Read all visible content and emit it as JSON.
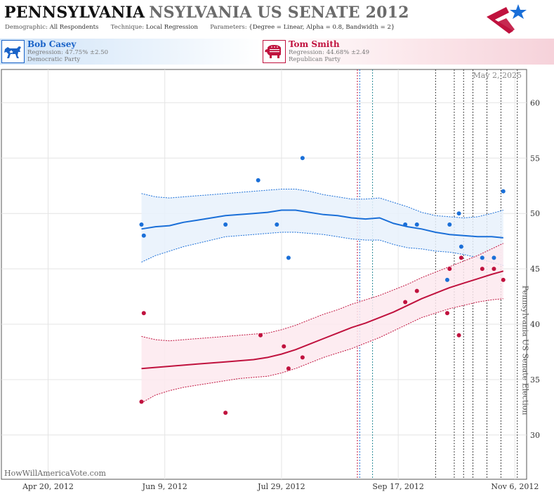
{
  "header": {
    "state": "PENNSYLVANIA",
    "race": "NSYLVANIA US SENATE 2012",
    "demographic_label": "Demographic:",
    "demographic_value": "All Respondents",
    "technique_label": "Technique:",
    "technique_value": "Local Regression",
    "parameters_label": "Parameters:",
    "parameters_value": "{Degree = Linear, Alpha = 0.8, Bandwidth = 2}"
  },
  "candidates": {
    "dem": {
      "name": "Bob Casey",
      "regression_label": "Regression:",
      "regression_value": "47.75% ±2.50",
      "party": "Democratic Party",
      "color": "#1a6fd8"
    },
    "rep": {
      "name": "Tom Smith",
      "regression_label": "Regression:",
      "regression_value": "44.68% ±2.49",
      "party": "Republican Party",
      "color": "#c0123e"
    }
  },
  "date_stamp": "May 2, 2025",
  "watermark": "HowWillAmericaVote.com",
  "icons": {
    "dem": "donkey-icon",
    "rep": "elephant-icon",
    "logo": "star-logo-icon"
  },
  "chart_data": {
    "type": "line",
    "x_start": "2012-03-31",
    "ylim": [
      26,
      63
    ],
    "xlim_days": [
      0,
      225
    ],
    "y_ticks": [
      30,
      35,
      40,
      45,
      50,
      55,
      60
    ],
    "x_ticks": [
      {
        "day": 20,
        "label": "Apr 20, 2012"
      },
      {
        "day": 70,
        "label": "Jun 9, 2012"
      },
      {
        "day": 120,
        "label": "Jul 29, 2012"
      },
      {
        "day": 170,
        "label": "Sep 17, 2012"
      },
      {
        "day": 220,
        "label": "Nov 6, 2012"
      }
    ],
    "event_lines": [
      {
        "day": 152.5,
        "color": "#c0123e"
      },
      {
        "day": 153.5,
        "color": "#1a6fd8"
      },
      {
        "day": 159,
        "color": "#2a8a98"
      },
      {
        "day": 186,
        "color": "#444444"
      },
      {
        "day": 194,
        "color": "#444444"
      },
      {
        "day": 198,
        "color": "#444444"
      },
      {
        "day": 202,
        "color": "#444444"
      },
      {
        "day": 208,
        "color": "#444444"
      },
      {
        "day": 214,
        "color": "#444444"
      },
      {
        "day": 221,
        "color": "#444444"
      }
    ],
    "election_label": "Pennsylvania US Senate Election",
    "election_day": 221,
    "series": [
      {
        "name": "Bob Casey",
        "color": "#1a6fd8",
        "band_fill": "#e8f1fb",
        "points": [
          [
            60,
            49
          ],
          [
            61,
            48
          ],
          [
            96,
            49
          ],
          [
            110,
            53
          ],
          [
            118,
            49
          ],
          [
            123,
            46
          ],
          [
            129,
            55
          ],
          [
            173,
            49
          ],
          [
            178,
            49
          ],
          [
            191,
            44
          ],
          [
            192,
            49
          ],
          [
            196,
            50
          ],
          [
            197,
            47
          ],
          [
            206,
            46
          ],
          [
            211,
            46
          ],
          [
            215,
            52
          ]
        ],
        "trend": [
          [
            60,
            48.6
          ],
          [
            66,
            48.8
          ],
          [
            72,
            48.9
          ],
          [
            78,
            49.2
          ],
          [
            84,
            49.4
          ],
          [
            90,
            49.6
          ],
          [
            96,
            49.8
          ],
          [
            102,
            49.9
          ],
          [
            108,
            50.0
          ],
          [
            114,
            50.1
          ],
          [
            120,
            50.3
          ],
          [
            126,
            50.3
          ],
          [
            132,
            50.1
          ],
          [
            138,
            49.9
          ],
          [
            144,
            49.8
          ],
          [
            150,
            49.6
          ],
          [
            156,
            49.5
          ],
          [
            162,
            49.6
          ],
          [
            168,
            49.1
          ],
          [
            174,
            48.8
          ],
          [
            180,
            48.6
          ],
          [
            186,
            48.3
          ],
          [
            192,
            48.1
          ],
          [
            198,
            48.0
          ],
          [
            204,
            47.9
          ],
          [
            210,
            47.9
          ],
          [
            215,
            47.8
          ]
        ],
        "upper": [
          [
            60,
            51.8
          ],
          [
            66,
            51.5
          ],
          [
            72,
            51.4
          ],
          [
            78,
            51.5
          ],
          [
            84,
            51.6
          ],
          [
            90,
            51.7
          ],
          [
            96,
            51.8
          ],
          [
            102,
            51.9
          ],
          [
            108,
            52.0
          ],
          [
            114,
            52.1
          ],
          [
            120,
            52.2
          ],
          [
            126,
            52.2
          ],
          [
            132,
            52.0
          ],
          [
            138,
            51.7
          ],
          [
            144,
            51.5
          ],
          [
            150,
            51.3
          ],
          [
            156,
            51.3
          ],
          [
            162,
            51.4
          ],
          [
            168,
            51.0
          ],
          [
            174,
            50.6
          ],
          [
            180,
            50.1
          ],
          [
            186,
            49.8
          ],
          [
            192,
            49.7
          ],
          [
            198,
            49.6
          ],
          [
            204,
            49.7
          ],
          [
            210,
            50.0
          ],
          [
            215,
            50.3
          ]
        ],
        "lower": [
          [
            60,
            45.6
          ],
          [
            66,
            46.2
          ],
          [
            72,
            46.6
          ],
          [
            78,
            47.0
          ],
          [
            84,
            47.3
          ],
          [
            90,
            47.6
          ],
          [
            96,
            47.9
          ],
          [
            102,
            48.0
          ],
          [
            108,
            48.1
          ],
          [
            114,
            48.2
          ],
          [
            120,
            48.3
          ],
          [
            126,
            48.3
          ],
          [
            132,
            48.2
          ],
          [
            138,
            48.1
          ],
          [
            144,
            47.9
          ],
          [
            150,
            47.7
          ],
          [
            156,
            47.6
          ],
          [
            162,
            47.6
          ],
          [
            168,
            47.2
          ],
          [
            174,
            46.9
          ],
          [
            180,
            46.8
          ],
          [
            186,
            46.6
          ],
          [
            192,
            46.5
          ],
          [
            198,
            46.3
          ],
          [
            204,
            46.0
          ],
          [
            210,
            45.6
          ],
          [
            215,
            45.3
          ]
        ]
      },
      {
        "name": "Tom Smith",
        "color": "#c0123e",
        "band_fill": "#fde9ee",
        "points": [
          [
            60,
            33
          ],
          [
            61,
            41
          ],
          [
            96,
            32
          ],
          [
            111,
            39
          ],
          [
            121,
            38
          ],
          [
            123,
            36
          ],
          [
            129,
            37
          ],
          [
            173,
            42
          ],
          [
            178,
            43
          ],
          [
            191,
            41
          ],
          [
            192,
            45
          ],
          [
            196,
            39
          ],
          [
            197,
            46
          ],
          [
            206,
            45
          ],
          [
            211,
            45
          ],
          [
            215,
            44
          ]
        ],
        "trend": [
          [
            60,
            36.0
          ],
          [
            66,
            36.1
          ],
          [
            72,
            36.2
          ],
          [
            78,
            36.3
          ],
          [
            84,
            36.4
          ],
          [
            90,
            36.5
          ],
          [
            96,
            36.6
          ],
          [
            102,
            36.7
          ],
          [
            108,
            36.8
          ],
          [
            114,
            37.0
          ],
          [
            120,
            37.3
          ],
          [
            126,
            37.7
          ],
          [
            132,
            38.2
          ],
          [
            138,
            38.7
          ],
          [
            144,
            39.2
          ],
          [
            150,
            39.7
          ],
          [
            156,
            40.1
          ],
          [
            162,
            40.6
          ],
          [
            168,
            41.1
          ],
          [
            174,
            41.7
          ],
          [
            180,
            42.3
          ],
          [
            186,
            42.8
          ],
          [
            192,
            43.3
          ],
          [
            198,
            43.7
          ],
          [
            204,
            44.1
          ],
          [
            210,
            44.5
          ],
          [
            215,
            44.8
          ]
        ],
        "upper": [
          [
            60,
            38.9
          ],
          [
            66,
            38.6
          ],
          [
            72,
            38.5
          ],
          [
            78,
            38.6
          ],
          [
            84,
            38.7
          ],
          [
            90,
            38.8
          ],
          [
            96,
            38.9
          ],
          [
            102,
            39.0
          ],
          [
            108,
            39.1
          ],
          [
            114,
            39.2
          ],
          [
            120,
            39.5
          ],
          [
            126,
            39.9
          ],
          [
            132,
            40.4
          ],
          [
            138,
            40.9
          ],
          [
            144,
            41.3
          ],
          [
            150,
            41.8
          ],
          [
            156,
            42.2
          ],
          [
            162,
            42.6
          ],
          [
            168,
            43.1
          ],
          [
            174,
            43.6
          ],
          [
            180,
            44.2
          ],
          [
            186,
            44.7
          ],
          [
            192,
            45.2
          ],
          [
            198,
            45.7
          ],
          [
            204,
            46.2
          ],
          [
            210,
            46.8
          ],
          [
            215,
            47.3
          ]
        ],
        "lower": [
          [
            60,
            32.9
          ],
          [
            66,
            33.6
          ],
          [
            72,
            34.0
          ],
          [
            78,
            34.3
          ],
          [
            84,
            34.5
          ],
          [
            90,
            34.7
          ],
          [
            96,
            34.9
          ],
          [
            102,
            35.1
          ],
          [
            108,
            35.2
          ],
          [
            114,
            35.3
          ],
          [
            120,
            35.6
          ],
          [
            126,
            36.0
          ],
          [
            132,
            36.5
          ],
          [
            138,
            37.0
          ],
          [
            144,
            37.4
          ],
          [
            150,
            37.8
          ],
          [
            156,
            38.3
          ],
          [
            162,
            38.8
          ],
          [
            168,
            39.4
          ],
          [
            174,
            40.0
          ],
          [
            180,
            40.6
          ],
          [
            186,
            41.0
          ],
          [
            192,
            41.4
          ],
          [
            198,
            41.7
          ],
          [
            204,
            42.0
          ],
          [
            210,
            42.2
          ],
          [
            215,
            42.3
          ]
        ]
      }
    ]
  }
}
